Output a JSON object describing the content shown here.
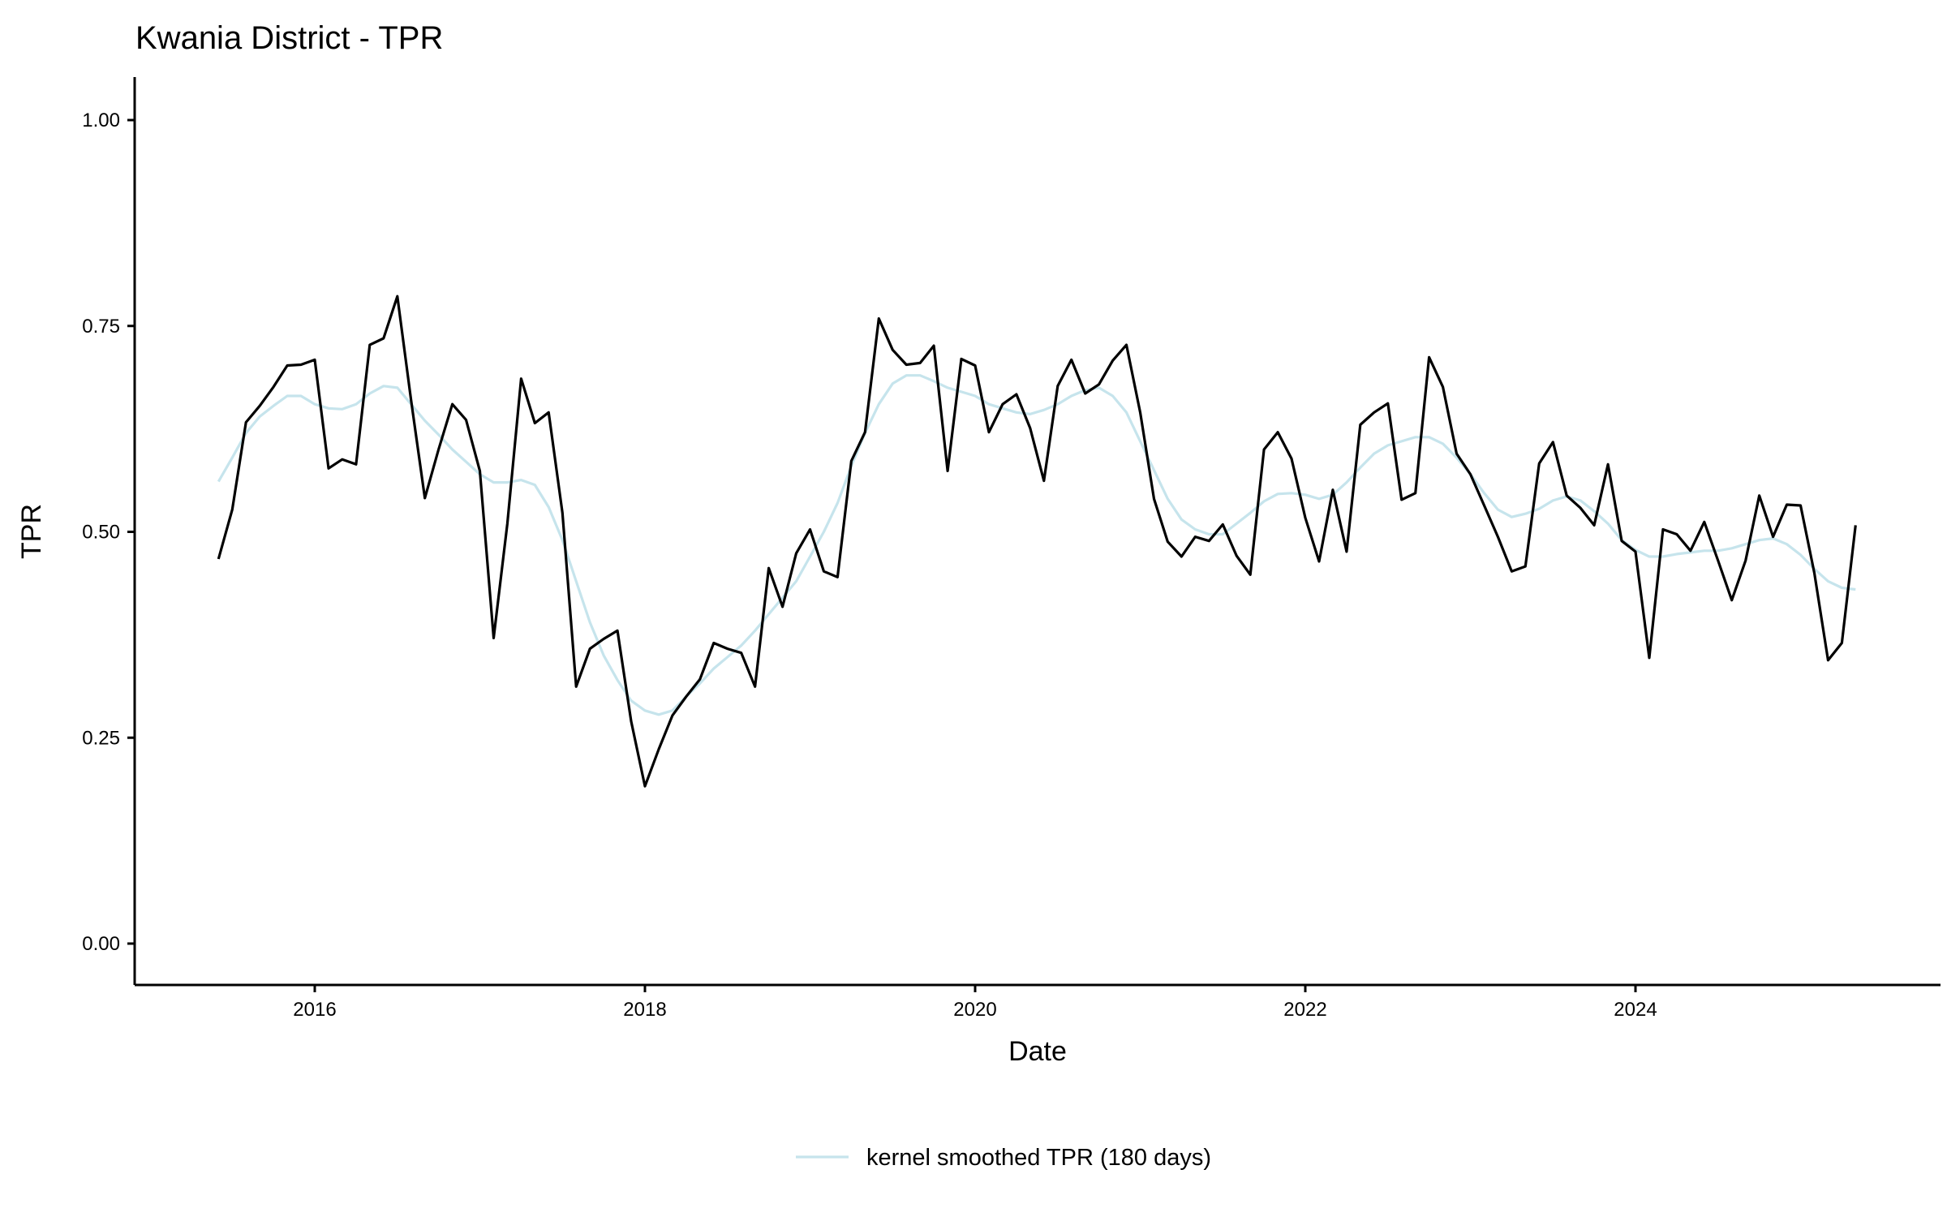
{
  "chart_data": {
    "type": "line",
    "title": "Kwania District - TPR",
    "xlabel": "Date",
    "ylabel": "TPR",
    "ylim": [
      0,
      1
    ],
    "xlim": [
      "2015-01",
      "2025-12"
    ],
    "x_ticks": [
      "2016",
      "2018",
      "2020",
      "2022",
      "2024"
    ],
    "y_ticks": [
      "0.00",
      "0.25",
      "0.50",
      "0.75",
      "1.00"
    ],
    "grid": false,
    "legend_position": "bottom",
    "x": [
      "2015-06",
      "2015-07",
      "2015-08",
      "2015-09",
      "2015-10",
      "2015-11",
      "2015-12",
      "2016-01",
      "2016-02",
      "2016-03",
      "2016-04",
      "2016-05",
      "2016-06",
      "2016-07",
      "2016-08",
      "2016-09",
      "2016-10",
      "2016-11",
      "2016-12",
      "2017-01",
      "2017-02",
      "2017-03",
      "2017-04",
      "2017-05",
      "2017-06",
      "2017-07",
      "2017-08",
      "2017-09",
      "2017-10",
      "2017-11",
      "2017-12",
      "2018-01",
      "2018-02",
      "2018-03",
      "2018-04",
      "2018-05",
      "2018-06",
      "2018-07",
      "2018-08",
      "2018-09",
      "2018-10",
      "2018-11",
      "2018-12",
      "2019-01",
      "2019-02",
      "2019-03",
      "2019-04",
      "2019-05",
      "2019-06",
      "2019-07",
      "2019-08",
      "2019-09",
      "2019-10",
      "2019-11",
      "2019-12",
      "2020-01",
      "2020-02",
      "2020-03",
      "2020-04",
      "2020-05",
      "2020-06",
      "2020-07",
      "2020-08",
      "2020-09",
      "2020-10",
      "2020-11",
      "2020-12",
      "2021-01",
      "2021-02",
      "2021-03",
      "2021-04",
      "2021-05",
      "2021-06",
      "2021-07",
      "2021-08",
      "2021-09",
      "2021-10",
      "2021-11",
      "2021-12",
      "2022-01",
      "2022-02",
      "2022-03",
      "2022-04",
      "2022-05",
      "2022-06",
      "2022-07",
      "2022-08",
      "2022-09",
      "2022-10",
      "2022-11",
      "2022-12",
      "2023-01",
      "2023-02",
      "2023-03",
      "2023-04",
      "2023-05",
      "2023-06",
      "2023-07",
      "2023-08",
      "2023-09",
      "2023-10",
      "2023-11",
      "2023-12",
      "2024-01",
      "2024-02",
      "2024-03",
      "2024-04",
      "2024-05",
      "2024-06",
      "2024-07",
      "2024-08",
      "2024-09",
      "2024-10",
      "2024-11",
      "2024-12",
      "2025-01",
      "2025-02",
      "2025-03",
      "2025-04",
      "2025-05"
    ],
    "series": [
      {
        "color": "#000000",
        "values": [
          0.467,
          0.527,
          0.633,
          0.653,
          0.676,
          0.702,
          0.703,
          0.709,
          0.577,
          0.588,
          0.582,
          0.727,
          0.735,
          0.786,
          0.66,
          0.541,
          0.6,
          0.655,
          0.636,
          0.574,
          0.371,
          0.51,
          0.686,
          0.632,
          0.645,
          0.523,
          0.312,
          0.358,
          0.37,
          0.38,
          0.27,
          0.191,
          0.236,
          0.277,
          0.3,
          0.321,
          0.365,
          0.358,
          0.353,
          0.312,
          0.456,
          0.409,
          0.474,
          0.503,
          0.452,
          0.445,
          0.586,
          0.621,
          0.759,
          0.721,
          0.703,
          0.705,
          0.726,
          0.574,
          0.71,
          0.702,
          0.621,
          0.655,
          0.667,
          0.626,
          0.562,
          0.677,
          0.709,
          0.668,
          0.679,
          0.708,
          0.727,
          0.645,
          0.54,
          0.488,
          0.47,
          0.494,
          0.489,
          0.509,
          0.471,
          0.448,
          0.6,
          0.621,
          0.589,
          0.517,
          0.464,
          0.551,
          0.476,
          0.63,
          0.645,
          0.656,
          0.539,
          0.547,
          0.712,
          0.676,
          0.595,
          0.57,
          0.532,
          0.494,
          0.452,
          0.458,
          0.583,
          0.609,
          0.544,
          0.529,
          0.508,
          0.582,
          0.489,
          0.476,
          0.347,
          0.503,
          0.497,
          0.477,
          0.512,
          0.465,
          0.417,
          0.465,
          0.544,
          0.494,
          0.533,
          0.532,
          0.45,
          0.344,
          0.365,
          0.508
        ]
      },
      {
        "name": "kernel smoothed TPR (180 days)",
        "color": "#c6e4ec",
        "values": [
          0.561,
          0.59,
          0.62,
          0.64,
          0.653,
          0.665,
          0.665,
          0.655,
          0.65,
          0.649,
          0.655,
          0.668,
          0.677,
          0.675,
          0.655,
          0.635,
          0.618,
          0.6,
          0.585,
          0.57,
          0.56,
          0.56,
          0.563,
          0.557,
          0.53,
          0.49,
          0.44,
          0.39,
          0.35,
          0.32,
          0.295,
          0.283,
          0.278,
          0.283,
          0.3,
          0.316,
          0.334,
          0.348,
          0.362,
          0.38,
          0.4,
          0.42,
          0.44,
          0.47,
          0.5,
          0.535,
          0.58,
          0.62,
          0.655,
          0.68,
          0.69,
          0.69,
          0.683,
          0.675,
          0.67,
          0.665,
          0.655,
          0.65,
          0.645,
          0.643,
          0.648,
          0.655,
          0.665,
          0.672,
          0.675,
          0.665,
          0.645,
          0.61,
          0.575,
          0.54,
          0.515,
          0.503,
          0.497,
          0.497,
          0.51,
          0.523,
          0.537,
          0.546,
          0.547,
          0.545,
          0.54,
          0.545,
          0.56,
          0.578,
          0.595,
          0.605,
          0.61,
          0.615,
          0.615,
          0.607,
          0.59,
          0.57,
          0.547,
          0.527,
          0.518,
          0.522,
          0.528,
          0.538,
          0.543,
          0.538,
          0.525,
          0.51,
          0.49,
          0.478,
          0.47,
          0.47,
          0.473,
          0.475,
          0.477,
          0.477,
          0.48,
          0.485,
          0.49,
          0.492,
          0.485,
          0.472,
          0.455,
          0.44,
          0.432,
          0.43
        ]
      }
    ]
  }
}
